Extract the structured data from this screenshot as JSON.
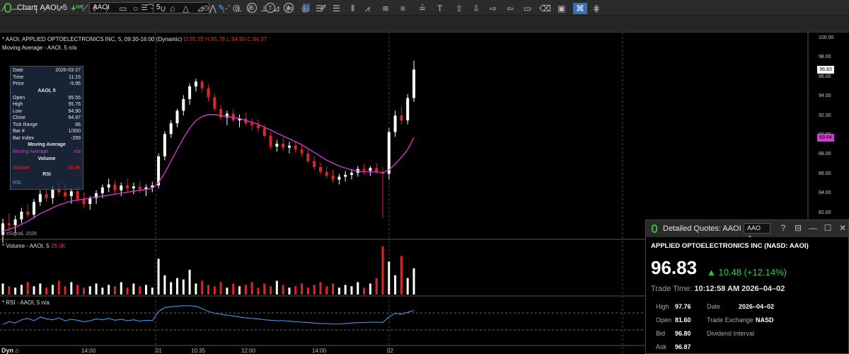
{
  "app": {
    "title": "Chart: AAOI, 5",
    "live_badge": "LIVE",
    "symbol_value": "AAOI",
    "interval_value": "5"
  },
  "toolbar": {
    "icons": [
      "pencil-icon",
      "draw-icon",
      "b-circle-icon",
      "t-circle-icon",
      "a-circle-icon",
      "link-icon",
      "edit-icon"
    ],
    "circle_letters": [
      "B",
      "T",
      "A"
    ]
  },
  "chart": {
    "header": "* AAOI, APPLIED OPTOELECTRONICS INC, 5, 09:30-16:00 (Dynamic)",
    "ohlc_text": "O:95.55 H:95.76 L:94.90 C:94.97",
    "ma_label": "Moving Average - AAOI, 5 n/a",
    "copyright": "© eSignal, 2026",
    "volume_label": "* Volume - AAOI, 5",
    "volume_value": "28.0K",
    "rsi_label": "* RSI - AAOI, 5 n/a",
    "mode": "Dyn",
    "y_ticks": [
      "100.00",
      "98.00",
      "96.00",
      "94.00",
      "92.00",
      "90.00",
      "88.00",
      "86.00",
      "84.00",
      "82.00",
      "80.00"
    ],
    "x_ticks": [
      "14:00",
      "01",
      "10:35",
      "12:00",
      "14:00",
      "02"
    ],
    "last_price_tag": "96.83",
    "ma_price_tag": "89.84",
    "colors": {
      "up": "#ffffff",
      "down": "#e0242b",
      "ma": "#d43bd4",
      "rsi": "#4aa3ff",
      "last_tag": "#ffffff",
      "ma_tag": "#d43bd4"
    }
  },
  "data_window": {
    "date_label": "Date",
    "date_value": "2026-03-27",
    "time_label": "Time",
    "time_value": "11:15",
    "price_label": "Price",
    "price_value": "-5.95",
    "symbol_heading": "AAOI, 5",
    "open_label": "Open",
    "open_value": "95.55",
    "high_label": "High",
    "high_value": "95.76",
    "low_label": "Low",
    "low_value": "94.90",
    "close_label": "Close",
    "close_value": "94.97",
    "tick_label": "Tick Range",
    "tick_value": "86",
    "bar_label": "Bar #",
    "bar_value": "1/300",
    "index_label": "Bar Index",
    "index_value": "-299",
    "ma_heading": "Moving Average",
    "ma_row_label": "Moving Average",
    "ma_row_value": "n/a",
    "vol_heading": "Volume",
    "vol_row_label": "Volume",
    "vol_row_value": "28.0K",
    "rsi_heading": "RSI",
    "rsi_row_label": "RSI"
  },
  "quotes": {
    "title": "Detailed Quotes: AAOI",
    "symbol": "AAO",
    "company": "APPLIED OPTOELECTRONICS INC (NASD: AAOI)",
    "last": "96.83",
    "change": "▲ 10.48 (+12.14%)",
    "trade_time_label": "Trade Time:",
    "trade_time": "10:12:58 AM 2026–04–02",
    "high_label": "High",
    "high_value": "97.76",
    "date_label": "Date",
    "date_value": "2026–04–02",
    "open_label": "Open",
    "open_value": "81.60",
    "exchange_label": "Trade Exchange",
    "exchange_value": "NASD",
    "bid_label": "Bid",
    "bid_value": "96.80",
    "div_label": "Dividend Interval",
    "ask_label": "Ask",
    "ask_value": "96.87"
  },
  "chart_data": {
    "type": "candlestick",
    "series_names": [
      "AAOI, 5"
    ],
    "ylim": [
      79.5,
      100.5
    ],
    "candles": [
      [
        79.8,
        81.5,
        79.0,
        81.0
      ],
      [
        81.0,
        82.0,
        80.2,
        80.8
      ],
      [
        80.8,
        81.8,
        80.0,
        81.4
      ],
      [
        81.4,
        82.6,
        81.0,
        82.2
      ],
      [
        82.2,
        83.0,
        81.6,
        81.9
      ],
      [
        81.9,
        83.5,
        81.5,
        83.2
      ],
      [
        83.2,
        84.4,
        82.8,
        84.0
      ],
      [
        84.0,
        84.6,
        83.2,
        83.6
      ],
      [
        83.6,
        84.8,
        83.0,
        84.5
      ],
      [
        84.5,
        85.2,
        83.8,
        84.2
      ],
      [
        84.2,
        85.0,
        83.4,
        83.8
      ],
      [
        83.8,
        84.6,
        83.0,
        84.3
      ],
      [
        84.3,
        84.8,
        83.2,
        83.5
      ],
      [
        83.5,
        84.2,
        82.6,
        83.0
      ],
      [
        83.0,
        83.8,
        82.4,
        83.6
      ],
      [
        83.6,
        84.4,
        83.0,
        84.1
      ],
      [
        84.1,
        85.0,
        83.6,
        84.7
      ],
      [
        84.7,
        85.6,
        84.2,
        85.0
      ],
      [
        85.0,
        85.4,
        84.0,
        84.4
      ],
      [
        84.4,
        85.2,
        83.8,
        84.9
      ],
      [
        84.9,
        85.6,
        84.2,
        84.6
      ],
      [
        84.6,
        85.2,
        84.0,
        84.8
      ],
      [
        84.8,
        85.4,
        84.1,
        84.5
      ],
      [
        84.5,
        85.0,
        83.8,
        84.7
      ],
      [
        84.7,
        85.3,
        84.2,
        84.9
      ],
      [
        84.9,
        88.2,
        84.6,
        87.9
      ],
      [
        87.9,
        90.5,
        87.5,
        90.2
      ],
      [
        90.2,
        91.6,
        89.8,
        91.3
      ],
      [
        91.3,
        92.8,
        90.9,
        92.6
      ],
      [
        92.6,
        94.2,
        92.1,
        93.8
      ],
      [
        93.8,
        95.4,
        93.2,
        95.1
      ],
      [
        95.1,
        95.9,
        94.6,
        95.6
      ],
      [
        95.6,
        95.8,
        94.5,
        94.9
      ],
      [
        94.9,
        95.3,
        93.6,
        94.0
      ],
      [
        94.0,
        94.4,
        92.5,
        92.8
      ],
      [
        92.8,
        93.2,
        91.6,
        91.9
      ],
      [
        91.9,
        92.6,
        91.1,
        92.3
      ],
      [
        92.3,
        92.8,
        91.4,
        91.6
      ],
      [
        91.6,
        92.2,
        90.9,
        91.8
      ],
      [
        91.8,
        92.4,
        91.0,
        91.3
      ],
      [
        91.3,
        91.8,
        90.6,
        91.1
      ],
      [
        91.1,
        91.7,
        90.4,
        90.8
      ],
      [
        90.8,
        91.2,
        89.8,
        90.0
      ],
      [
        90.0,
        90.4,
        88.6,
        88.9
      ],
      [
        88.9,
        89.6,
        88.4,
        89.2
      ],
      [
        89.2,
        89.8,
        88.5,
        88.8
      ],
      [
        88.8,
        89.4,
        88.2,
        89.0
      ],
      [
        89.0,
        89.5,
        88.3,
        88.6
      ],
      [
        88.6,
        89.2,
        87.9,
        88.2
      ],
      [
        88.2,
        88.6,
        87.2,
        87.4
      ],
      [
        87.4,
        87.9,
        86.5,
        86.8
      ],
      [
        86.8,
        87.3,
        86.0,
        86.3
      ],
      [
        86.3,
        86.9,
        85.6,
        85.9
      ],
      [
        85.9,
        86.5,
        85.2,
        85.5
      ],
      [
        85.5,
        86.1,
        85.0,
        85.8
      ],
      [
        85.8,
        86.4,
        85.3,
        86.0
      ],
      [
        86.0,
        86.6,
        85.5,
        86.2
      ],
      [
        86.2,
        86.9,
        85.8,
        86.6
      ],
      [
        86.6,
        87.1,
        86.0,
        86.4
      ],
      [
        86.4,
        86.9,
        85.9,
        86.7
      ],
      [
        86.7,
        87.2,
        86.1,
        86.3
      ],
      [
        86.3,
        86.8,
        81.6,
        86.1
      ],
      [
        86.1,
        90.8,
        85.5,
        90.4
      ],
      [
        90.4,
        92.6,
        89.9,
        92.1
      ],
      [
        92.1,
        93.0,
        91.2,
        91.6
      ],
      [
        91.6,
        94.3,
        91.2,
        93.9
      ],
      [
        93.9,
        97.76,
        93.5,
        96.83
      ]
    ],
    "ma": [
      80.2,
      80.4,
      80.6,
      80.9,
      81.2,
      81.6,
      82.0,
      82.3,
      82.6,
      82.9,
      83.1,
      83.3,
      83.4,
      83.5,
      83.6,
      83.7,
      83.8,
      83.9,
      84.0,
      84.1,
      84.2,
      84.3,
      84.4,
      84.5,
      84.6,
      85.2,
      86.2,
      87.4,
      88.6,
      89.8,
      90.8,
      91.6,
      92.0,
      92.2,
      92.2,
      92.1,
      92.0,
      91.9,
      91.8,
      91.6,
      91.4,
      91.2,
      90.9,
      90.6,
      90.3,
      90.0,
      89.7,
      89.4,
      89.1,
      88.7,
      88.3,
      87.9,
      87.5,
      87.2,
      86.9,
      86.7,
      86.5,
      86.4,
      86.3,
      86.3,
      86.3,
      86.2,
      86.5,
      87.1,
      87.8,
      88.6,
      89.84
    ],
    "volume": [
      8,
      6,
      5,
      7,
      9,
      6,
      8,
      5,
      7,
      10,
      6,
      9,
      7,
      5,
      6,
      8,
      5,
      7,
      6,
      9,
      5,
      8,
      6,
      7,
      5,
      26,
      14,
      9,
      12,
      11,
      18,
      8,
      10,
      7,
      6,
      9,
      5,
      8,
      6,
      7,
      9,
      5,
      8,
      6,
      10,
      7,
      5,
      6,
      8,
      5,
      7,
      9,
      6,
      8,
      5,
      7,
      6,
      9,
      5,
      8,
      12,
      35,
      24,
      14,
      28,
      12,
      19
    ],
    "rsi": [
      42,
      48,
      45,
      52,
      55,
      50,
      58,
      54,
      52,
      56,
      50,
      53,
      51,
      48,
      50,
      54,
      52,
      55,
      51,
      53,
      50,
      52,
      49,
      51,
      50,
      70,
      78,
      80,
      81,
      82,
      82,
      81,
      76,
      70,
      66,
      64,
      62,
      60,
      58,
      56,
      55,
      54,
      52,
      51,
      50,
      50,
      49,
      48,
      47,
      46,
      45,
      44,
      44,
      43,
      43,
      44,
      45,
      46,
      46,
      47,
      47,
      46,
      58,
      66,
      64,
      68,
      72
    ]
  }
}
